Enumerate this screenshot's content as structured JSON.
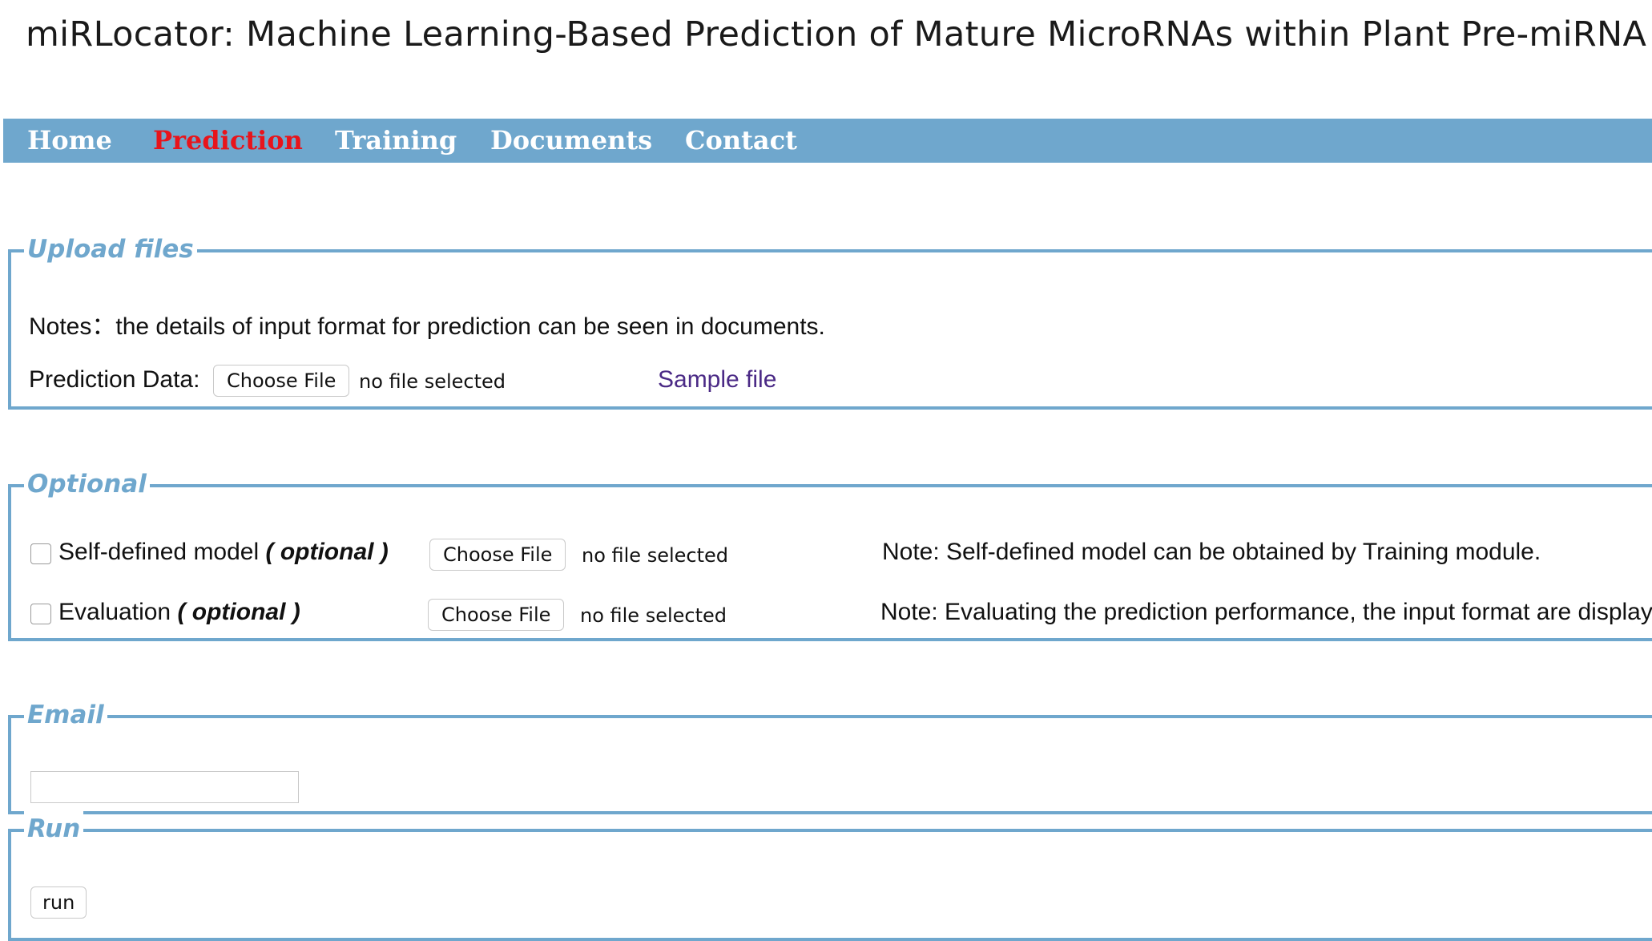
{
  "header": {
    "title": "miRLocator: Machine Learning-Based Prediction of Mature MicroRNAs within Plant Pre-miRNA"
  },
  "nav": {
    "items": [
      {
        "label": "Home",
        "active": false
      },
      {
        "label": "Prediction",
        "active": true
      },
      {
        "label": "Training",
        "active": false
      },
      {
        "label": "Documents",
        "active": false
      },
      {
        "label": "Contact",
        "active": false
      }
    ]
  },
  "upload": {
    "legend": "Upload files",
    "notes": "Notes：the details of input format for prediction can be seen in documents.",
    "prediction_label": "Prediction Data:",
    "choose_file": "Choose File",
    "file_status": "no file selected",
    "sample_link": "Sample file"
  },
  "optional": {
    "legend": "Optional",
    "self_defined": {
      "label": "Self-defined model",
      "tag": "( optional )",
      "choose_file": "Choose File",
      "file_status": "no file selected",
      "note": "Note: Self-defined model can be obtained by Training module.",
      "checked": false
    },
    "evaluation": {
      "label": "Evaluation",
      "tag": "( optional )",
      "choose_file": "Choose File",
      "file_status": "no file selected",
      "note": "Note: Evaluating the prediction performance, the input format are displaye",
      "checked": false
    }
  },
  "email": {
    "legend": "Email",
    "value": "",
    "placeholder": ""
  },
  "run": {
    "legend": "Run",
    "button": "run"
  },
  "colors": {
    "accent": "#6fa7cd",
    "active_nav": "#e8141b",
    "link": "#4b2a86"
  }
}
